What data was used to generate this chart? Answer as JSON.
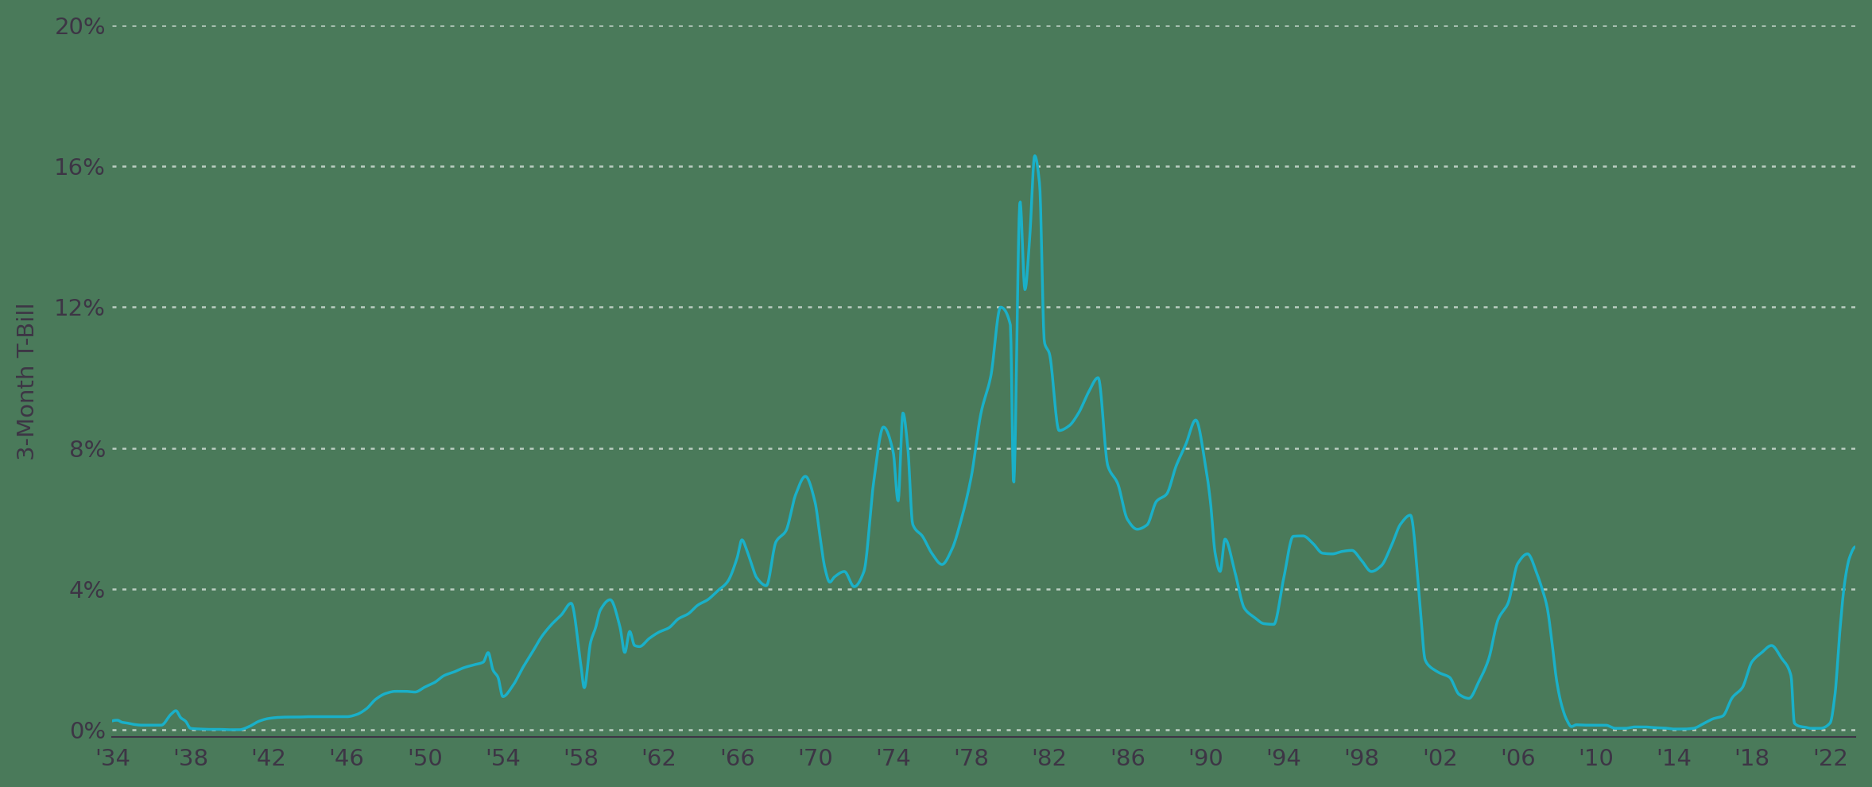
{
  "ylabel": "3-Month T-Bill",
  "background_color": "#4a7a5a",
  "line_color": "#1ab0c8",
  "grid_color": "#c8d8ce",
  "tick_color": "#3d3545",
  "spine_color": "#3d3545",
  "ylim": [
    -0.2,
    20
  ],
  "yticks": [
    0,
    4,
    8,
    12,
    16,
    20
  ],
  "ytick_labels": [
    "0%",
    "4%",
    "8%",
    "12%",
    "16%",
    "20%"
  ],
  "xtick_years": [
    1934,
    1938,
    1942,
    1946,
    1950,
    1954,
    1958,
    1962,
    1966,
    1970,
    1974,
    1978,
    1982,
    1986,
    1990,
    1994,
    1998,
    2002,
    2006,
    2010,
    2014,
    2018,
    2022
  ],
  "xtick_labels": [
    "'34",
    "'38",
    "'42",
    "'46",
    "'50",
    "'54",
    "'58",
    "'62",
    "'66",
    "'70",
    "'74",
    "'78",
    "'82",
    "'86",
    "'90",
    "'94",
    "'98",
    "'02",
    "'06",
    "'10",
    "'14",
    "'18",
    "'22"
  ],
  "line_width": 2.5,
  "figsize": [
    23.55,
    9.9
  ],
  "dpi": 100
}
